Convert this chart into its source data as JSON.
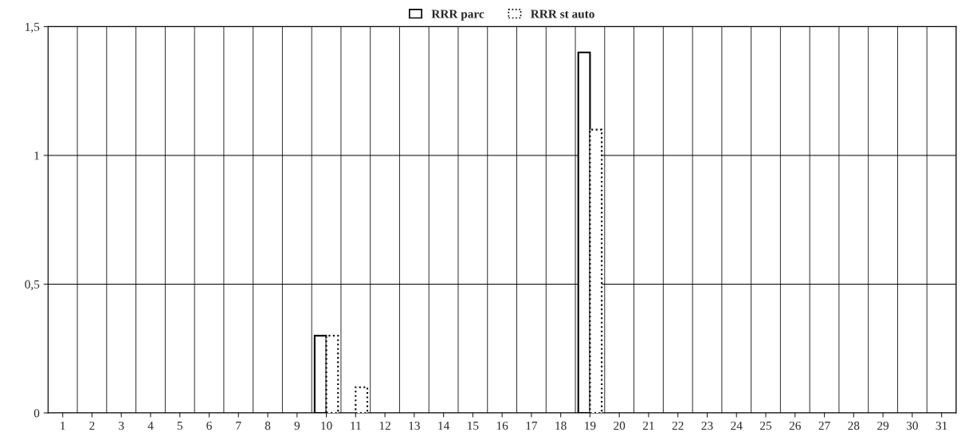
{
  "chart_data": {
    "type": "bar",
    "categories": [
      "1",
      "2",
      "3",
      "4",
      "5",
      "6",
      "7",
      "8",
      "9",
      "10",
      "11",
      "12",
      "13",
      "14",
      "15",
      "16",
      "17",
      "18",
      "19",
      "20",
      "21",
      "22",
      "23",
      "24",
      "25",
      "26",
      "27",
      "28",
      "29",
      "30",
      "31"
    ],
    "series": [
      {
        "name": "RRR parc",
        "color": "#ffffff",
        "line_style": "solid",
        "values": [
          0,
          0,
          0,
          0,
          0,
          0,
          0,
          0,
          0,
          0.3,
          0,
          0,
          0,
          0,
          0,
          0,
          0,
          0,
          1.4,
          0,
          0,
          0,
          0,
          0,
          0,
          0,
          0,
          0,
          0,
          0,
          0
        ]
      },
      {
        "name": "RRR st auto",
        "color": "#ffffff",
        "line_style": "dotted",
        "values": [
          0,
          0,
          0,
          0,
          0,
          0,
          0,
          0,
          0,
          0.3,
          0.1,
          0,
          0,
          0,
          0,
          0,
          0,
          0,
          1.1,
          0,
          0,
          0,
          0,
          0,
          0,
          0,
          0,
          0,
          0,
          0,
          0
        ]
      }
    ],
    "ylim": [
      0,
      1.5
    ],
    "yticks": [
      {
        "value": 0,
        "label": "0"
      },
      {
        "value": 0.5,
        "label": "0,5"
      },
      {
        "value": 1,
        "label": "1"
      },
      {
        "value": 1.5,
        "label": "1,5"
      }
    ],
    "grid": true,
    "legend": "top"
  }
}
